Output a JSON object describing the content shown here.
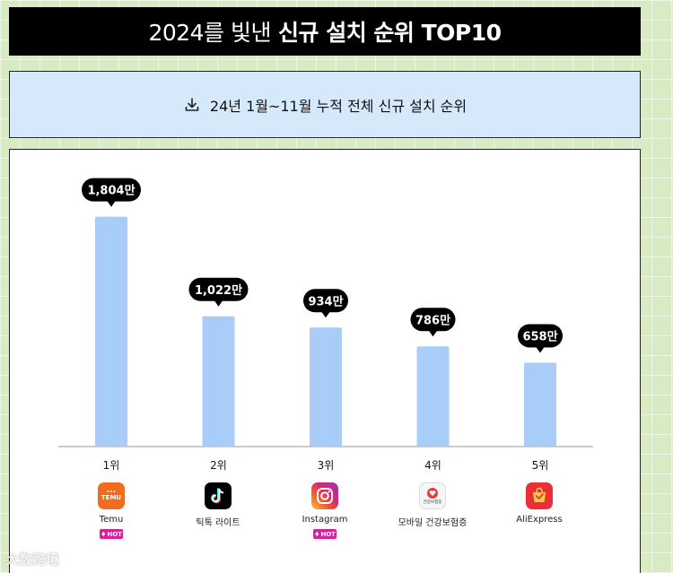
{
  "header": {
    "title_prefix": "2024를 빛낸",
    "title_main": "신규 설치 순위 TOP10"
  },
  "subtitle": {
    "text": "24년 1월~11월 누적 전체 신규 설치 순위",
    "icon": "download-icon"
  },
  "watermark": "大数跨境",
  "chart_data": {
    "type": "bar",
    "categories": [
      "1위",
      "2위",
      "3위",
      "4위",
      "5위"
    ],
    "values": [
      1804,
      1022,
      934,
      786,
      658
    ],
    "value_labels": [
      "1,804만",
      "1,022만",
      "934만",
      "786만",
      "658만"
    ],
    "ylim": [
      0,
      1900
    ],
    "bar_color": "#a8cdf8",
    "label_bubble_color": "#000000",
    "grid": false
  },
  "apps": [
    {
      "name": "Temu",
      "icon": "temu-icon",
      "icon_text": "Temu",
      "hot": true
    },
    {
      "name": "틱톡 라이트",
      "icon": "tiktok-icon",
      "hot": false
    },
    {
      "name": "Instagram",
      "icon": "instagram-icon",
      "hot": true
    },
    {
      "name": "모바일 건강보험증",
      "icon": "health-insurance-icon",
      "icon_text": "건강보험증",
      "hot": false
    },
    {
      "name": "AliExpress",
      "icon": "aliexpress-icon",
      "hot": false
    }
  ],
  "hot_label": "HOT"
}
